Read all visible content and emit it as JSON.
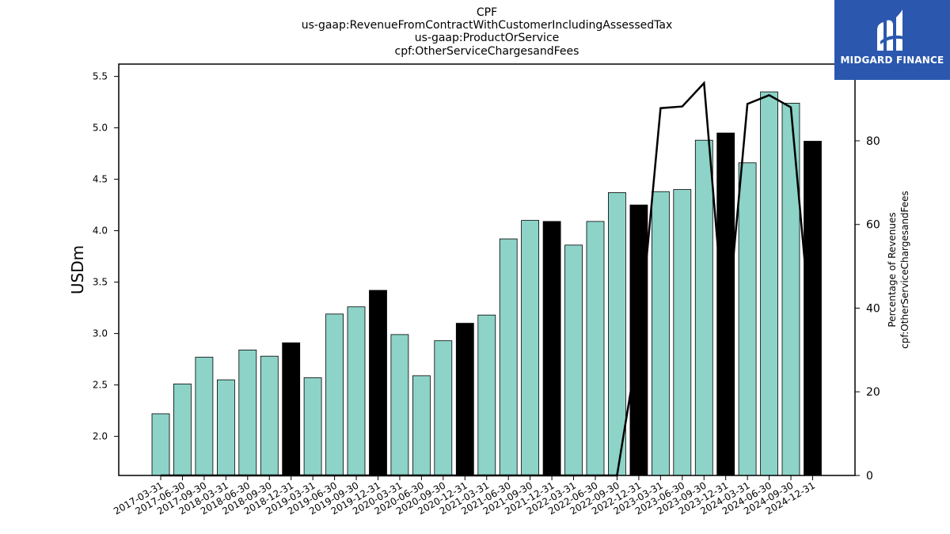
{
  "chart_data": {
    "type": "bar",
    "title_lines": [
      "CPF",
      "us-gaap:RevenueFromContractWithCustomerIncludingAssessedTax",
      "us-gaap:ProductOrService",
      "cpf:OtherServiceChargesandFees"
    ],
    "ylabel": "USDm",
    "y2label_lines": [
      "Percentage of Revenues",
      "cpf:OtherServiceChargesandFees"
    ],
    "ylim": [
      1.62,
      5.62
    ],
    "y2lim": [
      0,
      93.8
    ],
    "yticks": [
      2.0,
      2.5,
      3.0,
      3.5,
      4.0,
      4.5,
      5.0,
      5.5
    ],
    "ytick_labels": [
      "2.0",
      "2.5",
      "3.0",
      "3.5",
      "4.0",
      "4.5",
      "5.0",
      "5.5"
    ],
    "y2ticks": [
      0,
      20,
      40,
      60,
      80
    ],
    "y2tick_labels": [
      "0",
      "20",
      "40",
      "60",
      "80"
    ],
    "categories": [
      "2017-03-31",
      "2017-06-30",
      "2017-09-30",
      "2018-03-31",
      "2018-06-30",
      "2018-09-30",
      "2018-12-31",
      "2019-03-31",
      "2019-06-30",
      "2019-09-30",
      "2019-12-31",
      "2020-03-31",
      "2020-06-30",
      "2020-09-30",
      "2020-12-31",
      "2021-03-31",
      "2021-06-30",
      "2021-09-30",
      "2021-12-31",
      "2022-03-31",
      "2022-06-30",
      "2022-09-30",
      "2022-12-31",
      "2023-03-31",
      "2023-06-30",
      "2023-09-30",
      "2023-12-31",
      "2024-03-31",
      "2024-06-30",
      "2024-09-30",
      "2024-12-31"
    ],
    "series": [
      {
        "values": [
          2.22,
          2.51,
          2.77,
          2.55,
          2.84,
          2.78,
          2.91,
          2.57,
          3.19,
          3.26,
          3.42,
          2.99,
          2.59,
          2.93,
          3.1,
          3.18,
          3.92,
          4.1,
          4.09,
          3.86,
          4.09,
          4.37,
          4.25,
          4.38,
          4.4,
          4.88,
          4.95,
          4.66,
          5.35,
          5.24,
          4.87
        ],
        "colors_by_bar": [
          "#8dd3c7",
          "#8dd3c7",
          "#8dd3c7",
          "#8dd3c7",
          "#8dd3c7",
          "#8dd3c7",
          "#000000",
          "#8dd3c7",
          "#8dd3c7",
          "#8dd3c7",
          "#000000",
          "#8dd3c7",
          "#8dd3c7",
          "#8dd3c7",
          "#000000",
          "#8dd3c7",
          "#8dd3c7",
          "#8dd3c7",
          "#000000",
          "#8dd3c7",
          "#8dd3c7",
          "#8dd3c7",
          "#000000",
          "#8dd3c7",
          "#8dd3c7",
          "#8dd3c7",
          "#000000",
          "#8dd3c7",
          "#8dd3c7",
          "#8dd3c7",
          "#000000"
        ],
        "axis": "left"
      },
      {
        "type": "line",
        "axis": "right",
        "color": "#000000",
        "values": [
          0,
          0,
          0,
          0,
          0,
          0,
          0,
          0,
          0,
          0,
          0,
          0,
          0,
          0,
          0,
          0,
          0,
          0,
          0,
          0,
          0,
          0,
          32.0,
          87.8,
          88.2,
          93.8,
          32.0,
          88.8,
          90.9,
          88.0,
          30.0
        ]
      }
    ],
    "bar_color": "#8dd3c7",
    "annual_bar_color": "#000000",
    "grid": false,
    "legend": "none"
  },
  "logo": {
    "text": "MIDGARD FINANCE",
    "icon": "midgard-logo-icon",
    "background": "#2b58ae"
  }
}
